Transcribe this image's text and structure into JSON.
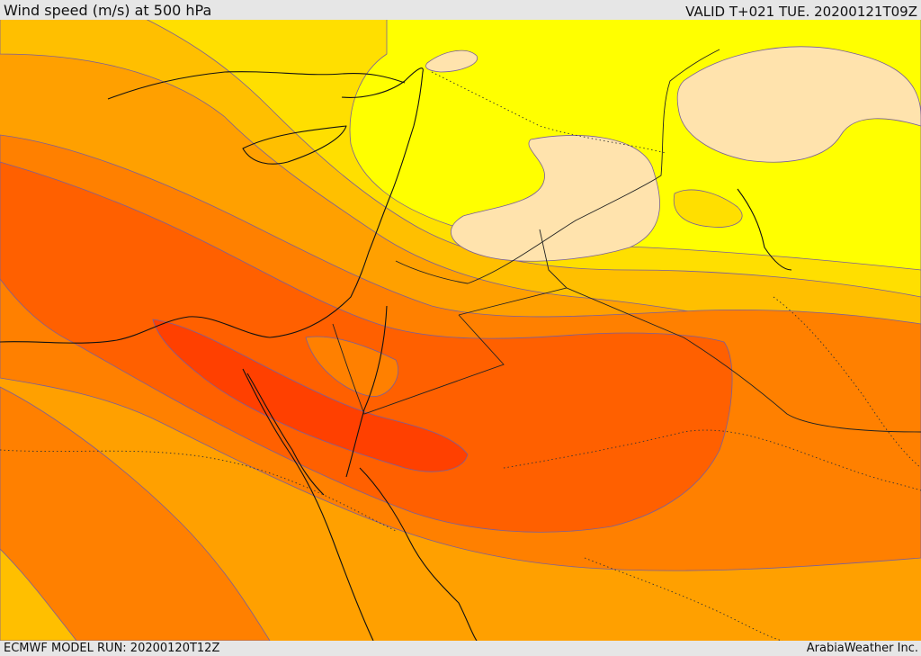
{
  "header": {
    "title": "Wind speed (m/s) at 500 hPa",
    "valid_time": "VALID T+021 TUE. 20200121T09Z"
  },
  "footer": {
    "model_run": "ECMWF MODEL RUN: 20200120T12Z",
    "credit": "ArabiaWeather Inc."
  },
  "map": {
    "variable": "Wind speed at 500 hPa",
    "units": "m/s",
    "colors": {
      "level_1": "#ffe3ad",
      "level_2": "#ffff00",
      "level_3": "#ffdf00",
      "level_4": "#ffbf00",
      "level_5": "#ffa000",
      "level_6": "#ff8000",
      "level_7": "#ff6000",
      "level_8": "#ff4000",
      "coastline": "#111111",
      "contour": "#7a5f9a"
    }
  }
}
